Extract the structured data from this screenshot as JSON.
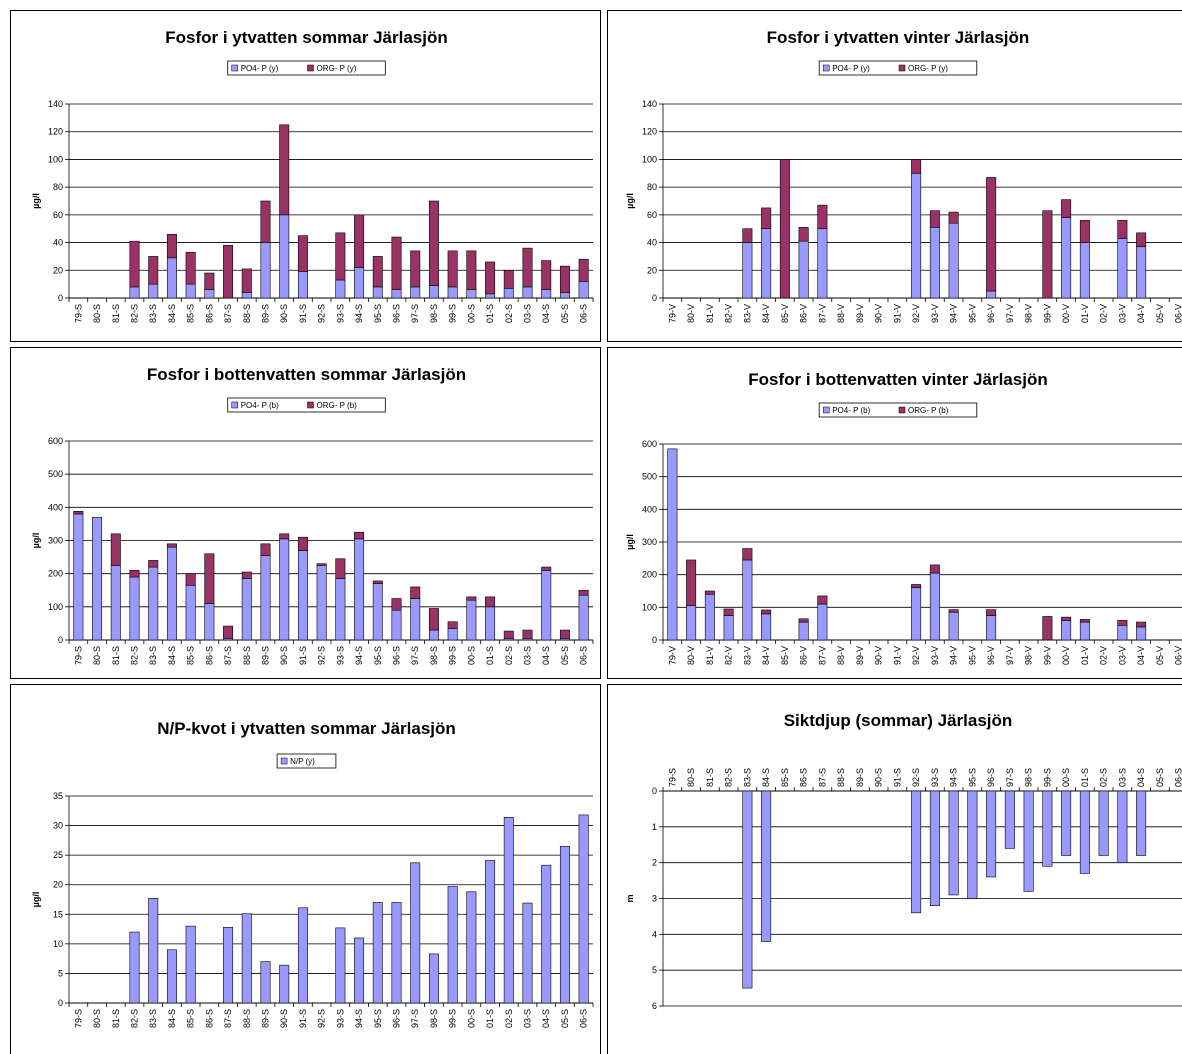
{
  "chart_data": [
    {
      "type": "bar",
      "stacked": true,
      "title": "Fosfor i ytvatten sommar Järlasjön",
      "ylabel": "µg/l",
      "ylim": [
        0,
        140
      ],
      "yticks": [
        0,
        20,
        40,
        60,
        80,
        100,
        120,
        140
      ],
      "grid": true,
      "legend": "top",
      "categories": [
        "79-S",
        "80-S",
        "81-S",
        "82-S",
        "83-S",
        "84-S",
        "85-S",
        "86-S",
        "87-S",
        "88-S",
        "89-S",
        "90-S",
        "91-S",
        "92-S",
        "93-S",
        "94-S",
        "95-S",
        "96-S",
        "97-S",
        "98-S",
        "99-S",
        "00-S",
        "01-S",
        "02-S",
        "03-S",
        "04-S",
        "05-S",
        "06-S"
      ],
      "series": [
        {
          "name": "PO4- P    (y)",
          "color": "#9999ff",
          "values": [
            0,
            0,
            0,
            8,
            10,
            29,
            10,
            6,
            0,
            4,
            40,
            60,
            19,
            0,
            13,
            22,
            8,
            6,
            8,
            9,
            8,
            6,
            3,
            7,
            8,
            6,
            4,
            12
          ]
        },
        {
          "name": "ORG- P    (y)",
          "color": "#993366",
          "values": [
            0,
            0,
            0,
            33,
            20,
            17,
            23,
            12,
            38,
            17,
            30,
            65,
            26,
            0,
            34,
            38,
            22,
            38,
            26,
            61,
            26,
            28,
            23,
            13,
            28,
            21,
            19,
            16
          ]
        }
      ]
    },
    {
      "type": "bar",
      "stacked": true,
      "title": "Fosfor i ytvatten vinter Järlasjön",
      "ylabel": "µg/l",
      "ylim": [
        0,
        140
      ],
      "yticks": [
        0,
        20,
        40,
        60,
        80,
        100,
        120,
        140
      ],
      "grid": true,
      "legend": "top",
      "categories": [
        "79-V",
        "80-V",
        "81-V",
        "82-V",
        "83-V",
        "84-V",
        "85-V",
        "86-V",
        "87-V",
        "88-V",
        "89-V",
        "90-V",
        "91-V",
        "92-V",
        "93-V",
        "94-V",
        "95-V",
        "96-V",
        "97-V",
        "98-V",
        "99-V",
        "00-V",
        "01-V",
        "02-V",
        "03-V",
        "04-V",
        "05-V",
        "06-V"
      ],
      "series": [
        {
          "name": "PO4- P    (y)",
          "color": "#9999ff",
          "values": [
            0,
            0,
            0,
            0,
            40,
            50,
            0,
            41,
            50,
            0,
            0,
            0,
            0,
            90,
            51,
            54,
            0,
            5,
            0,
            0,
            0,
            58,
            40,
            0,
            43,
            37,
            0,
            0
          ]
        },
        {
          "name": "ORG- P    (y)",
          "color": "#993366",
          "values": [
            0,
            0,
            0,
            0,
            10,
            15,
            100,
            10,
            17,
            0,
            0,
            0,
            0,
            10,
            12,
            8,
            0,
            82,
            0,
            0,
            63,
            13,
            16,
            0,
            13,
            10,
            0,
            0
          ]
        }
      ]
    },
    {
      "type": "bar",
      "stacked": true,
      "title": "Fosfor i bottenvatten sommar Järlasjön",
      "ylabel": "µg/l",
      "ylim": [
        0,
        600
      ],
      "yticks": [
        0,
        100,
        200,
        300,
        400,
        500,
        600
      ],
      "grid": true,
      "legend": "top",
      "categories": [
        "79-S",
        "80-S",
        "81-S",
        "82-S",
        "83-S",
        "84-S",
        "85-S",
        "86-S",
        "87-S",
        "88-S",
        "89-S",
        "90-S",
        "91-S",
        "92-S",
        "93-S",
        "94-S",
        "95-S",
        "96-S",
        "97-S",
        "98-S",
        "99-S",
        "00-S",
        "01-S",
        "02-S",
        "03-S",
        "04-S",
        "05-S",
        "06-S"
      ],
      "series": [
        {
          "name": "PO4- P    (b)",
          "color": "#9999ff",
          "values": [
            380,
            370,
            225,
            190,
            220,
            280,
            165,
            110,
            5,
            185,
            255,
            305,
            270,
            225,
            185,
            305,
            170,
            90,
            125,
            30,
            35,
            120,
            100,
            5,
            5,
            210,
            5,
            135
          ]
        },
        {
          "name": "ORG- P    (b)",
          "color": "#993366",
          "values": [
            8,
            0,
            95,
            20,
            20,
            10,
            35,
            150,
            37,
            20,
            35,
            15,
            40,
            5,
            60,
            20,
            8,
            35,
            35,
            65,
            20,
            10,
            30,
            22,
            25,
            10,
            25,
            15
          ]
        }
      ]
    },
    {
      "type": "bar",
      "stacked": true,
      "title": "Fosfor i bottenvatten vinter Järlasjön",
      "ylabel": "µg/l",
      "ylim": [
        0,
        600
      ],
      "yticks": [
        0,
        100,
        200,
        300,
        400,
        500,
        600
      ],
      "grid": true,
      "legend": "top",
      "categories": [
        "79-V",
        "80-V",
        "81-V",
        "82-V",
        "83-V",
        "84-V",
        "85-V",
        "86-V",
        "87-V",
        "88-V",
        "89-V",
        "90-V",
        "91-V",
        "92-V",
        "93-V",
        "94-V",
        "95-V",
        "96-V",
        "97-V",
        "98-V",
        "99-V",
        "00-V",
        "01-V",
        "02-V",
        "03-V",
        "04-V",
        "05-V",
        "06-V"
      ],
      "series": [
        {
          "name": "PO4- P    (b)",
          "color": "#9999ff",
          "values": [
            585,
            105,
            140,
            75,
            245,
            80,
            0,
            55,
            110,
            0,
            0,
            0,
            0,
            160,
            205,
            85,
            0,
            75,
            0,
            0,
            0,
            60,
            55,
            0,
            45,
            40,
            0,
            0
          ]
        },
        {
          "name": "ORG- P    (b)",
          "color": "#993366",
          "values": [
            0,
            140,
            10,
            20,
            35,
            12,
            0,
            10,
            25,
            0,
            0,
            0,
            0,
            10,
            25,
            8,
            0,
            18,
            0,
            0,
            72,
            10,
            8,
            0,
            15,
            15,
            0,
            0
          ]
        }
      ]
    },
    {
      "type": "bar",
      "stacked": false,
      "title": "N/P-kvot i ytvatten sommar Järlasjön",
      "ylabel": "µg/l",
      "ylim": [
        0,
        35
      ],
      "yticks": [
        0,
        5,
        10,
        15,
        20,
        25,
        30,
        35
      ],
      "grid": true,
      "legend": "top",
      "categories": [
        "79-S",
        "80-S",
        "81-S",
        "82-S",
        "83-S",
        "84-S",
        "85-S",
        "86-S",
        "87-S",
        "88-S",
        "89-S",
        "90-S",
        "91-S",
        "92-S",
        "93-S",
        "94-S",
        "95-S",
        "96-S",
        "97-S",
        "98-S",
        "99-S",
        "00-S",
        "01-S",
        "02-S",
        "03-S",
        "04-S",
        "05-S",
        "06-S"
      ],
      "series": [
        {
          "name": "N/P  (y)",
          "color": "#9999ff",
          "values": [
            0,
            0,
            0,
            12,
            17.7,
            9,
            13,
            0,
            12.8,
            15.1,
            7,
            6.4,
            16.1,
            0,
            12.7,
            11,
            17,
            17,
            23.7,
            8.3,
            19.7,
            18.8,
            24.1,
            31.4,
            16.9,
            23.3,
            26.5,
            31.8
          ]
        }
      ]
    },
    {
      "type": "bar",
      "stacked": false,
      "inverted_y": true,
      "title": "Siktdjup (sommar) Järlasjön",
      "ylabel": "m",
      "ylim": [
        0,
        6
      ],
      "yticks": [
        0,
        1,
        2,
        3,
        4,
        5,
        6
      ],
      "grid": true,
      "legend": "none",
      "categories": [
        "79-S",
        "80-S",
        "81-S",
        "82-S",
        "83-S",
        "84-S",
        "85-S",
        "86-S",
        "87-S",
        "88-S",
        "89-S",
        "90-S",
        "91-S",
        "92-S",
        "93-S",
        "94-S",
        "95-S",
        "96-S",
        "97-S",
        "98-S",
        "99-S",
        "00-S",
        "01-S",
        "02-S",
        "03-S",
        "04-S",
        "05-S",
        "06-S"
      ],
      "series": [
        {
          "name": "",
          "color": "#9999ff",
          "values": [
            0,
            0,
            0,
            0,
            5.5,
            4.2,
            0,
            0,
            0,
            0,
            0,
            0,
            0,
            3.4,
            3.2,
            2.9,
            3.0,
            2.4,
            1.6,
            2.8,
            2.1,
            1.8,
            2.3,
            1.8,
            2.0,
            1.8,
            0,
            0
          ]
        }
      ]
    }
  ]
}
